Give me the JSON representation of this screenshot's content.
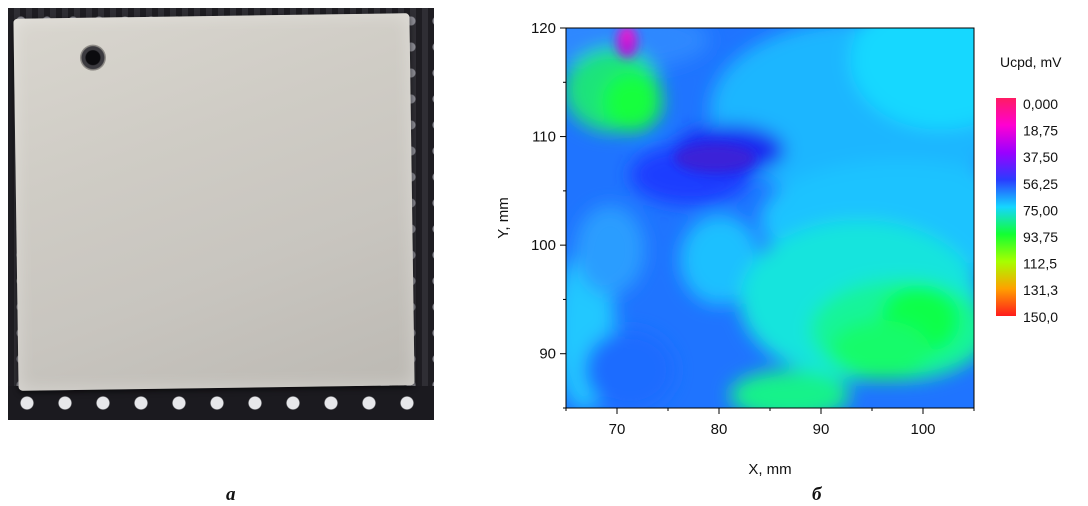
{
  "captions": {
    "photo": "a",
    "map": "б"
  },
  "chart_data": {
    "type": "heatmap",
    "title": "",
    "xlabel": "X, mm",
    "ylabel": "Y, mm",
    "xlim": [
      65,
      105
    ],
    "ylim": [
      85,
      120
    ],
    "x_ticks": [
      70,
      80,
      90,
      100
    ],
    "y_ticks": [
      90,
      100,
      110,
      120
    ],
    "colorbar": {
      "title": "Ucpd, mV",
      "labels": [
        "0,000",
        "18,75",
        "37,50",
        "56,25",
        "75,00",
        "93,75",
        "112,5",
        "131,3",
        "150,0"
      ],
      "colors": [
        "#ff1c63",
        "#ff00d2",
        "#9b00ff",
        "#2a3cff",
        "#15d6ff",
        "#12ff32",
        "#a6ff00",
        "#ffa000",
        "#ff1c1c"
      ]
    },
    "description_levels": {
      "background_mV": 70,
      "features": [
        {
          "x": 71,
          "y": 119,
          "value_mV": 30
        },
        {
          "x": 72,
          "y": 113,
          "value_mV": 95
        },
        {
          "x": 79,
          "y": 108,
          "value_mV": 50
        },
        {
          "x": 95,
          "y": 94,
          "value_mV": 92
        }
      ]
    }
  },
  "grid": false,
  "legend_position": "right"
}
